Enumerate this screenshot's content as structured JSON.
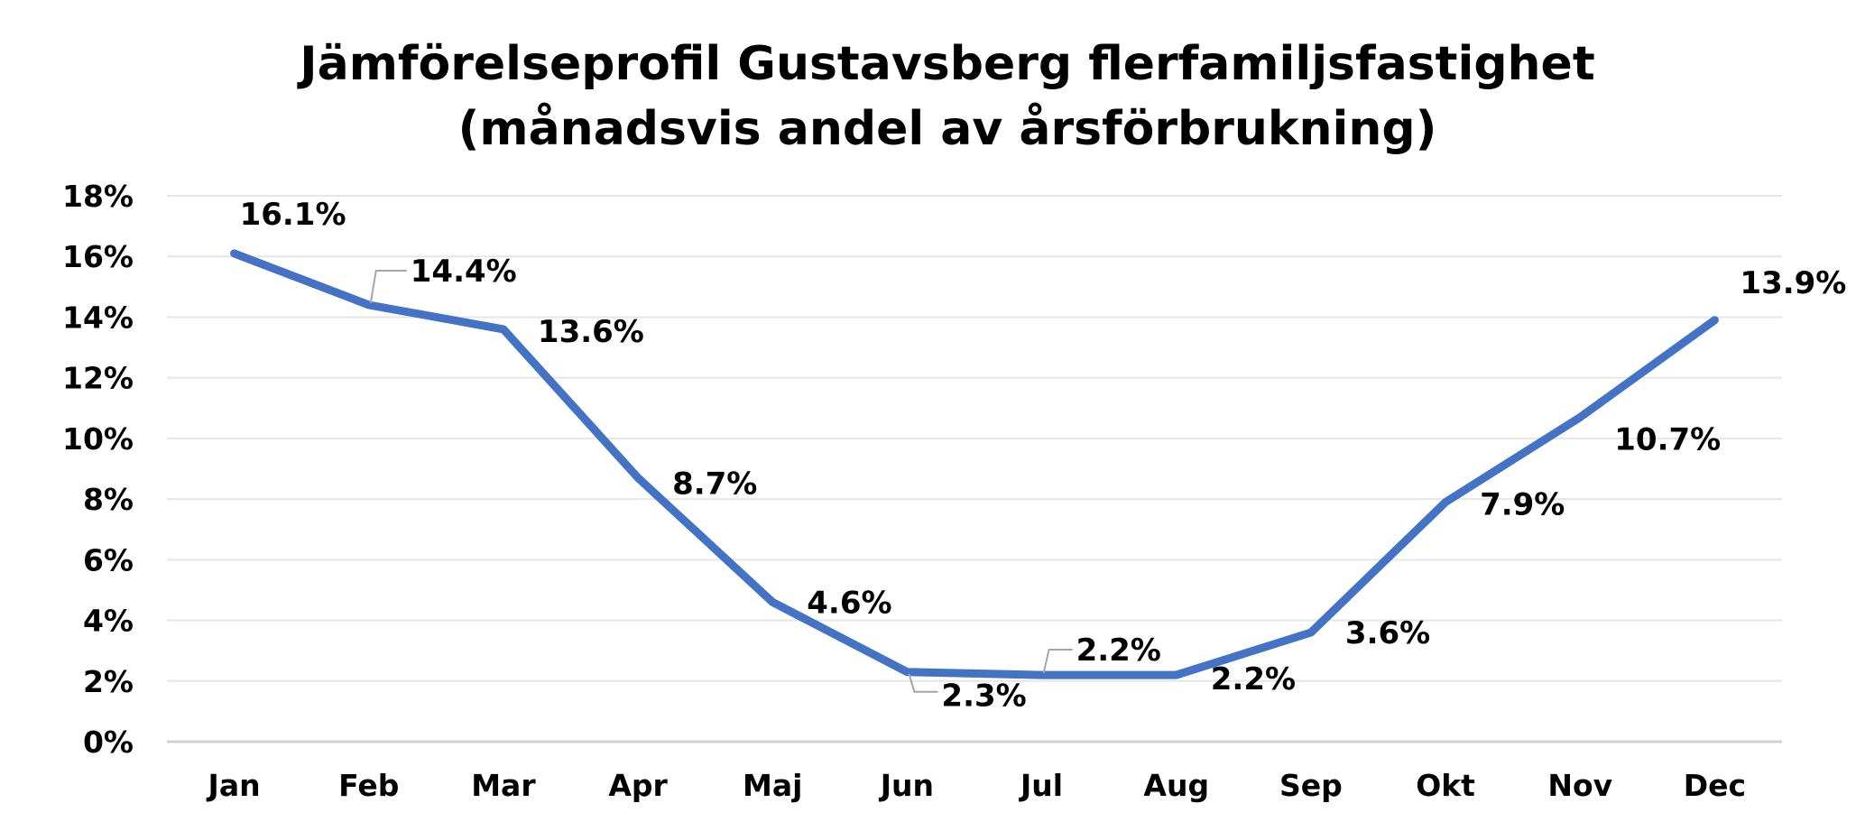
{
  "chart_data": {
    "type": "line",
    "title_lines": [
      "Jämförelseprofil Gustavsberg flerfamiljsfastighet",
      "(månadsvis andel av årsförbrukning)"
    ],
    "xlabel": "",
    "ylabel": "",
    "categories": [
      "Jan",
      "Feb",
      "Mar",
      "Apr",
      "Maj",
      "Jun",
      "Jul",
      "Aug",
      "Sep",
      "Okt",
      "Nov",
      "Dec"
    ],
    "series": [
      {
        "values": [
          16.1,
          14.4,
          13.6,
          8.7,
          4.6,
          2.3,
          2.2,
          2.2,
          3.6,
          7.9,
          10.7,
          13.9
        ],
        "data_labels": [
          "16.1%",
          "14.4%",
          "13.6%",
          "8.7%",
          "4.6%",
          "2.3%",
          "2.2%",
          "2.2%",
          "3.6%",
          "7.9%",
          "10.7%",
          "13.9%"
        ]
      }
    ],
    "yticks": [
      0,
      2,
      4,
      6,
      8,
      10,
      12,
      14,
      16,
      18
    ],
    "ytick_labels": [
      "0%",
      "2%",
      "4%",
      "6%",
      "8%",
      "10%",
      "12%",
      "14%",
      "16%",
      "18%"
    ],
    "ylim": [
      0,
      18
    ],
    "grid": true,
    "legend": "none",
    "line_color": "#4472C4"
  }
}
